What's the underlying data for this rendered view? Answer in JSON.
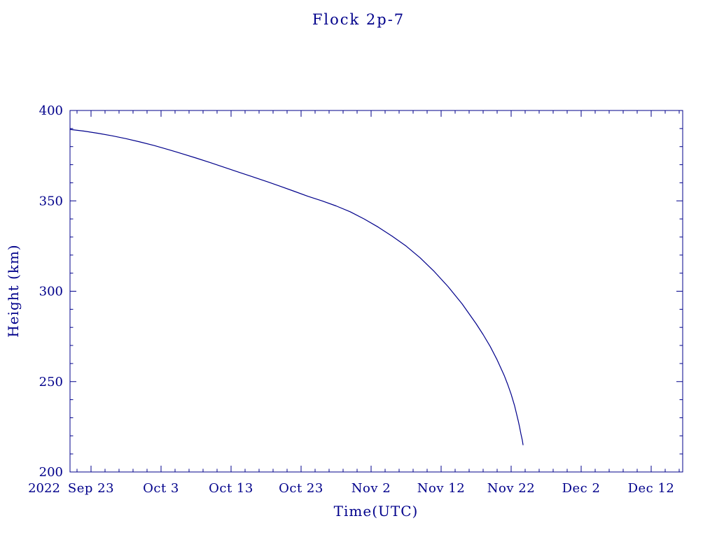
{
  "page": {
    "background": "#ffffff"
  },
  "chart_data": {
    "type": "line",
    "title": "Flock 2p-7",
    "xlabel": "Time(UTC)",
    "ylabel": "Height (km)",
    "axis_color": "#00008b",
    "line_color": "#00008b",
    "grid": false,
    "legend": "none",
    "x_axis": {
      "unit": "days since 2022-09-20 (UTC)",
      "lim": [
        0,
        87.5
      ],
      "year_label": "2022",
      "major_ticks": [
        {
          "day": 3,
          "label": "Sep 23"
        },
        {
          "day": 13,
          "label": "Oct 3"
        },
        {
          "day": 23,
          "label": "Oct 13"
        },
        {
          "day": 33,
          "label": "Oct 23"
        },
        {
          "day": 43,
          "label": "Nov 2"
        },
        {
          "day": 53,
          "label": "Nov 12"
        },
        {
          "day": 63,
          "label": "Nov 22"
        },
        {
          "day": 73,
          "label": "Dec 2"
        },
        {
          "day": 83,
          "label": "Dec 12"
        }
      ],
      "minor_tick_step": 2
    },
    "y_axis": {
      "lim": [
        200,
        400
      ],
      "major_ticks": [
        200,
        250,
        300,
        350,
        400
      ],
      "minor_tick_step": 10
    },
    "series": [
      {
        "name": "Flock 2p-7 orbital height",
        "points": [
          [
            0,
            389.5
          ],
          [
            2,
            388.6
          ],
          [
            4,
            387.4
          ],
          [
            6,
            386.0
          ],
          [
            8,
            384.4
          ],
          [
            10,
            382.6
          ],
          [
            12,
            380.6
          ],
          [
            14,
            378.4
          ],
          [
            16,
            376.1
          ],
          [
            18,
            373.7
          ],
          [
            20,
            371.2
          ],
          [
            22,
            368.6
          ],
          [
            24,
            366.0
          ],
          [
            26,
            363.4
          ],
          [
            28,
            360.8
          ],
          [
            30,
            358.1
          ],
          [
            32,
            355.3
          ],
          [
            34,
            352.5
          ],
          [
            36,
            350.0
          ],
          [
            38,
            347.2
          ],
          [
            40,
            344.0
          ],
          [
            42,
            340.0
          ],
          [
            44,
            335.5
          ],
          [
            46,
            330.5
          ],
          [
            48,
            325.0
          ],
          [
            50,
            318.5
          ],
          [
            52,
            311.0
          ],
          [
            54,
            302.5
          ],
          [
            56,
            293.0
          ],
          [
            58,
            282.0
          ],
          [
            59,
            276.0
          ],
          [
            60,
            269.5
          ],
          [
            61,
            262.0
          ],
          [
            62,
            253.5
          ],
          [
            62.5,
            248.5
          ],
          [
            63,
            243.0
          ],
          [
            63.5,
            236.5
          ],
          [
            64,
            228.5
          ],
          [
            64.2,
            225.0
          ],
          [
            64.4,
            221.0
          ],
          [
            64.6,
            217.5
          ],
          [
            64.7,
            215.0
          ]
        ]
      }
    ]
  }
}
